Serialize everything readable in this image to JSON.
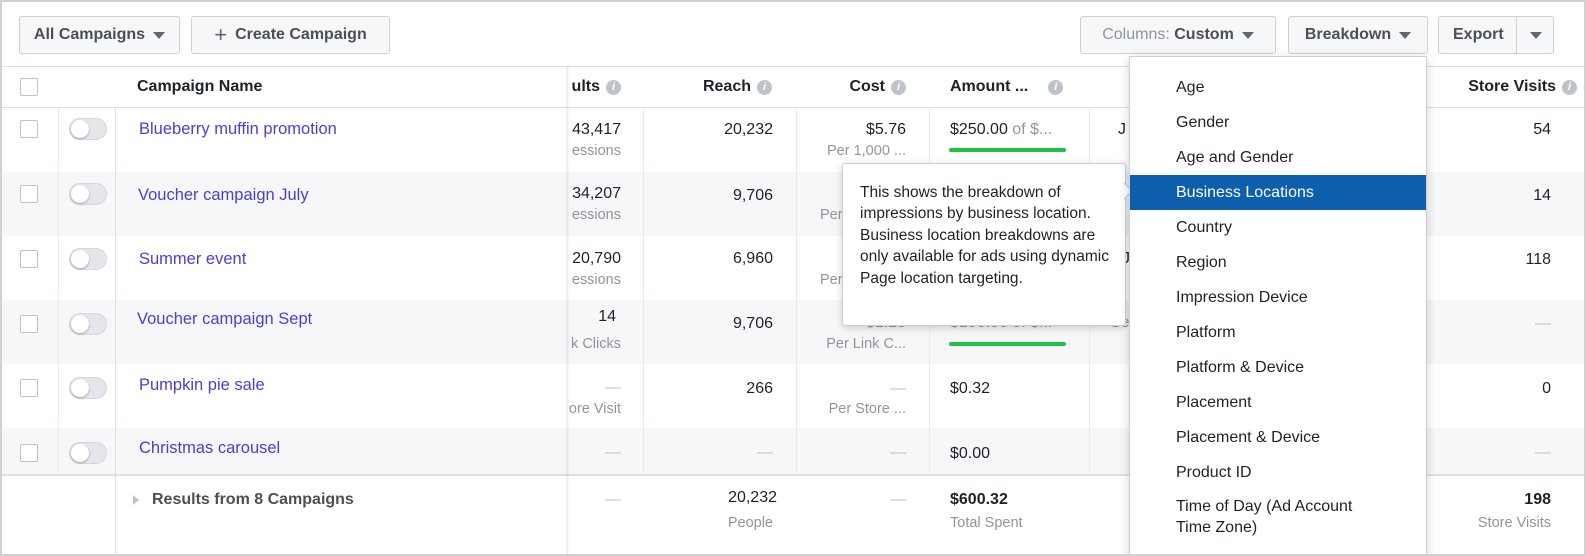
{
  "toolbar": {
    "all_campaigns": "All Campaigns",
    "create_campaign": "Create Campaign",
    "columns_label": "Columns:",
    "columns_value": "Custom",
    "breakdown": "Breakdown",
    "export": "Export"
  },
  "table": {
    "headers": {
      "campaign_name": "Campaign Name",
      "results": "ults",
      "reach": "Reach",
      "cost": "Cost",
      "amount": "Amount ...",
      "store_visits": "Store Visits"
    },
    "rows": [
      {
        "name": "Blueberry muffin promotion",
        "results": "43,417",
        "results_sub": "essions",
        "reach": "20,232",
        "cost": "$5.76",
        "cost_sub": "Per 1,000 ...",
        "amount": "$250.00",
        "amount_sub": "of $...",
        "extra": "J",
        "store_visits": "54"
      },
      {
        "name": "Voucher campaign July",
        "results": "34,207",
        "results_sub": "essions",
        "reach": "9,706",
        "cost": "",
        "cost_sub": "Per",
        "amount": "",
        "amount_sub": "",
        "extra": "",
        "store_visits": "14"
      },
      {
        "name": "Summer event",
        "results": "20,790",
        "results_sub": "essions",
        "reach": "6,960",
        "cost": "",
        "cost_sub": "Per",
        "amount": "",
        "amount_sub": "",
        "extra": "J",
        "store_visits": "118"
      },
      {
        "name": "Voucher campaign Sept",
        "results": "14",
        "results_sub": "k Clicks",
        "reach": "9,706",
        "cost": "$1.25",
        "cost_sub": "Per Link C...",
        "amount": "$100.00",
        "amount_sub": "of $...",
        "extra": "Se",
        "store_visits": "—"
      },
      {
        "name": "Pumpkin pie sale",
        "results": "—",
        "results_sub": "ore Visit",
        "reach": "266",
        "cost": "—",
        "cost_sub": "Per Store ...",
        "amount": "$0.32",
        "amount_sub": "",
        "extra": "",
        "store_visits": "0"
      },
      {
        "name": "Christmas carousel",
        "results": "—",
        "results_sub": "",
        "reach": "—",
        "cost": "—",
        "cost_sub": "",
        "amount": "$0.00",
        "amount_sub": "",
        "extra": "",
        "store_visits": "—"
      }
    ],
    "footer": {
      "title": "Results from 8 Campaigns",
      "results": "—",
      "reach": "20,232",
      "reach_sub": "People",
      "cost": "—",
      "amount": "$600.32",
      "amount_sub": "Total Spent",
      "store_visits": "198",
      "store_visits_sub": "Store Visits"
    }
  },
  "breakdown_menu": {
    "cut_top_item": "None",
    "items": [
      "Age",
      "Gender",
      "Age and Gender",
      "Business Locations",
      "Country",
      "Region",
      "Impression Device",
      "Platform",
      "Platform & Device",
      "Placement",
      "Placement & Device",
      "Product ID",
      "Time of Day (Ad Account Time Zone)"
    ],
    "selected": "Business Locations"
  },
  "tooltip": {
    "text": "This shows the breakdown of impressions by business location. Business location breakdowns are only available for ads using dynamic Page location targeting."
  },
  "colors": {
    "link": "#4b3ed1",
    "selected": "#0d5fae",
    "progress": "#20c040"
  }
}
